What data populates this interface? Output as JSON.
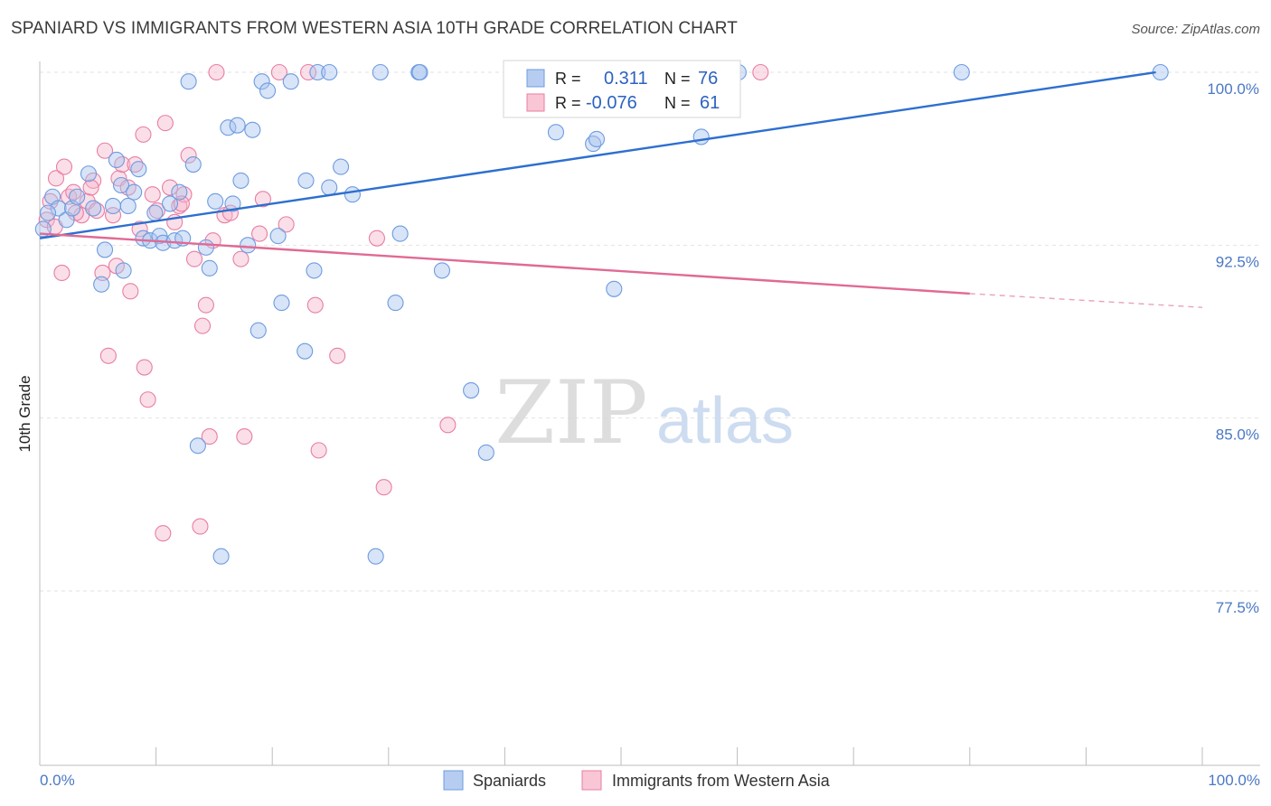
{
  "title": "SPANIARD VS IMMIGRANTS FROM WESTERN ASIA 10TH GRADE CORRELATION CHART",
  "source": "Source: ZipAtlas.com",
  "watermark": {
    "zip": "ZIP",
    "atlas": "atlas"
  },
  "chart_data": {
    "type": "scatter",
    "title": "SPANIARD VS IMMIGRANTS FROM WESTERN ASIA 10TH GRADE CORRELATION CHART",
    "xlabel": "",
    "ylabel": "10th Grade",
    "xlim": [
      0,
      100
    ],
    "ylim": [
      70,
      101
    ],
    "x_tick_labels": [
      "0.0%",
      "100.0%"
    ],
    "y_ticks": [
      77.5,
      85.0,
      92.5,
      100.0
    ],
    "y_tick_labels": [
      "77.5%",
      "85.0%",
      "92.5%",
      "100.0%"
    ],
    "grid": true,
    "legend_position": "top-center",
    "series": [
      {
        "name": "Spaniards",
        "color": "#6d9be0",
        "fill": "#a9c4ee",
        "legend_r": "0.311",
        "legend_n": "76",
        "trend": {
          "x": [
            0,
            96
          ],
          "y": [
            92.8,
            100.0
          ]
        },
        "points": [
          [
            0.3,
            93.2
          ],
          [
            1.1,
            94.6
          ],
          [
            1.6,
            94.1
          ],
          [
            2.3,
            93.6
          ],
          [
            2.8,
            94.1
          ],
          [
            3.2,
            94.6
          ],
          [
            4.2,
            95.6
          ],
          [
            4.6,
            94.1
          ],
          [
            5.3,
            90.8
          ],
          [
            5.6,
            92.3
          ],
          [
            6.3,
            94.2
          ],
          [
            6.6,
            96.2
          ],
          [
            7.0,
            95.1
          ],
          [
            7.2,
            91.4
          ],
          [
            7.6,
            94.2
          ],
          [
            8.1,
            94.8
          ],
          [
            8.5,
            95.8
          ],
          [
            8.9,
            92.8
          ],
          [
            9.5,
            92.7
          ],
          [
            9.9,
            93.9
          ],
          [
            10.3,
            92.9
          ],
          [
            10.6,
            92.6
          ],
          [
            11.2,
            94.3
          ],
          [
            11.6,
            92.7
          ],
          [
            12.0,
            94.8
          ],
          [
            12.3,
            92.8
          ],
          [
            12.8,
            99.6
          ],
          [
            13.2,
            96.0
          ],
          [
            13.6,
            83.8
          ],
          [
            14.3,
            92.4
          ],
          [
            14.6,
            91.5
          ],
          [
            15.1,
            94.4
          ],
          [
            15.6,
            79.0
          ],
          [
            16.2,
            97.6
          ],
          [
            16.6,
            94.3
          ],
          [
            17.0,
            97.7
          ],
          [
            17.3,
            95.3
          ],
          [
            17.9,
            92.5
          ],
          [
            18.3,
            97.5
          ],
          [
            18.8,
            88.8
          ],
          [
            19.1,
            99.6
          ],
          [
            19.6,
            99.2
          ],
          [
            20.5,
            92.9
          ],
          [
            20.8,
            90.0
          ],
          [
            21.6,
            99.6
          ],
          [
            22.8,
            87.9
          ],
          [
            22.9,
            95.3
          ],
          [
            23.6,
            91.4
          ],
          [
            23.9,
            100.0
          ],
          [
            24.9,
            100.0
          ],
          [
            24.9,
            95.0
          ],
          [
            25.9,
            95.9
          ],
          [
            26.9,
            94.7
          ],
          [
            29.3,
            100.0
          ],
          [
            28.9,
            79.0
          ],
          [
            30.6,
            90.0
          ],
          [
            31.0,
            93.0
          ],
          [
            32.6,
            100.0
          ],
          [
            32.7,
            100.0
          ],
          [
            34.6,
            91.4
          ],
          [
            37.1,
            86.2
          ],
          [
            38.4,
            83.5
          ],
          [
            44.9,
            100.0
          ],
          [
            44.4,
            97.4
          ],
          [
            47.6,
            96.9
          ],
          [
            47.9,
            97.1
          ],
          [
            49.1,
            100.0
          ],
          [
            49.4,
            90.6
          ],
          [
            51.4,
            99.1
          ],
          [
            53.9,
            100.0
          ],
          [
            56.9,
            97.2
          ],
          [
            58.4,
            100.0
          ],
          [
            60.1,
            100.0
          ],
          [
            79.3,
            100.0
          ],
          [
            96.4,
            100.0
          ],
          [
            0.7,
            93.9
          ]
        ]
      },
      {
        "name": "Immigrants from Western Asia",
        "color": "#e87ea3",
        "fill": "#f6b8cc",
        "legend_r": "-0.076",
        "legend_n": "61",
        "trend": {
          "x": [
            0,
            80
          ],
          "y": [
            93.0,
            90.4
          ]
        },
        "trend_dashed": {
          "x": [
            80,
            100
          ],
          "y": [
            90.4,
            89.8
          ]
        },
        "points": [
          [
            0.6,
            93.6
          ],
          [
            1.4,
            95.4
          ],
          [
            1.9,
            91.3
          ],
          [
            2.1,
            95.9
          ],
          [
            2.5,
            94.6
          ],
          [
            2.9,
            94.8
          ],
          [
            3.6,
            93.8
          ],
          [
            4.1,
            94.4
          ],
          [
            4.6,
            95.3
          ],
          [
            4.9,
            94.0
          ],
          [
            5.4,
            91.3
          ],
          [
            5.6,
            96.6
          ],
          [
            5.9,
            87.7
          ],
          [
            6.3,
            93.8
          ],
          [
            6.6,
            91.6
          ],
          [
            6.8,
            95.4
          ],
          [
            7.1,
            96.0
          ],
          [
            7.6,
            95.0
          ],
          [
            7.8,
            90.5
          ],
          [
            8.2,
            96.0
          ],
          [
            8.6,
            93.2
          ],
          [
            8.9,
            97.3
          ],
          [
            9.0,
            87.2
          ],
          [
            9.3,
            85.8
          ],
          [
            10.1,
            94.0
          ],
          [
            10.6,
            80.0
          ],
          [
            10.8,
            97.8
          ],
          [
            11.2,
            95.0
          ],
          [
            11.6,
            93.5
          ],
          [
            12.0,
            94.2
          ],
          [
            12.4,
            94.7
          ],
          [
            12.8,
            96.4
          ],
          [
            13.3,
            91.9
          ],
          [
            13.8,
            80.3
          ],
          [
            14.0,
            89.0
          ],
          [
            14.3,
            89.9
          ],
          [
            14.6,
            84.2
          ],
          [
            14.9,
            92.7
          ],
          [
            15.2,
            100.0
          ],
          [
            15.9,
            93.8
          ],
          [
            16.4,
            93.9
          ],
          [
            17.3,
            91.9
          ],
          [
            17.6,
            84.2
          ],
          [
            18.9,
            93.0
          ],
          [
            19.2,
            94.5
          ],
          [
            20.6,
            100.0
          ],
          [
            21.2,
            93.4
          ],
          [
            23.1,
            100.0
          ],
          [
            23.7,
            89.9
          ],
          [
            24.0,
            83.6
          ],
          [
            25.6,
            87.7
          ],
          [
            29.0,
            92.8
          ],
          [
            29.6,
            82.0
          ],
          [
            35.1,
            84.7
          ],
          [
            62.0,
            100.0
          ],
          [
            0.9,
            94.4
          ],
          [
            1.3,
            93.3
          ],
          [
            3.1,
            93.9
          ],
          [
            4.4,
            95.0
          ],
          [
            12.2,
            94.3
          ],
          [
            9.7,
            94.7
          ]
        ]
      }
    ]
  }
}
